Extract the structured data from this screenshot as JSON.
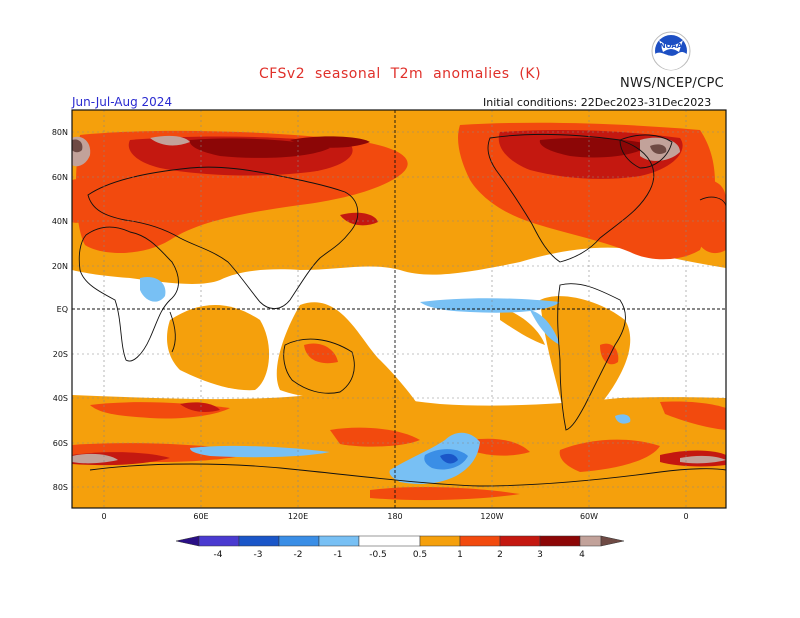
{
  "header": {
    "title": "CFSv2  seasonal  T2m  anomalies  (K)",
    "season": "Jun-Jul-Aug 2024",
    "initial_conditions": "Initial conditions: 22Dec2023-31Dec2023",
    "agency": "NWS/NCEP/CPC",
    "logo_text": "NOAA"
  },
  "map": {
    "lat_labels": [
      "80N",
      "60N",
      "40N",
      "20N",
      "EQ",
      "20S",
      "40S",
      "60S",
      "80S"
    ],
    "lon_labels": [
      "0",
      "60E",
      "120E",
      "180",
      "120W",
      "60W",
      "0"
    ]
  },
  "colorbar": {
    "tick_labels": [
      "-4",
      "-3",
      "-2",
      "-1",
      "-0.5",
      "0.5",
      "1",
      "2",
      "3",
      "4"
    ],
    "colors": {
      "below_-4": "#2a0f86",
      "-4_to_-3": "#4a3ad0",
      "-3_to_-2": "#1a56c8",
      "-2_to_-1": "#3a8ee6",
      "-1_to_-0.5": "#78c0f4",
      "-0.5_to_0.5": "#ffffff",
      "0.5_to_1": "#f5a00c",
      "1_to_2": "#f24a0e",
      "2_to_3": "#c41810",
      "3_to_4": "#8c0606",
      "4_to_5": "#c2a29a",
      "above_5": "#6e4a44"
    }
  },
  "colors": {
    "title": "#e0302a",
    "season": "#2a2ad0",
    "logo_blue": "#1d4fc3"
  }
}
